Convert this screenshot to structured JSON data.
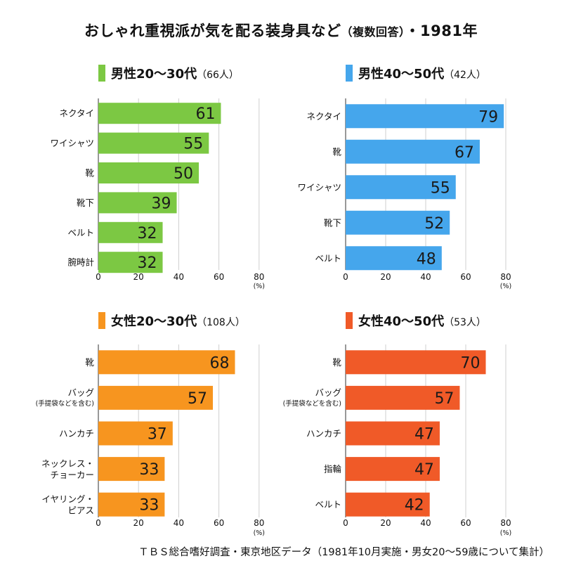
{
  "title": "おしゃれ重視派が気を配る装身具など",
  "title_paren": "（複数回答）",
  "title_year": "・1981年",
  "footer": "ＴＢＳ総合嗜好調査・東京地区データ（1981年10月実施・男女20〜59歳について集計）",
  "chart_data": [
    {
      "type": "bar",
      "orientation": "horizontal",
      "title": "男性20〜30代",
      "title_note": "（66人）",
      "color": "#7cc843",
      "categories": [
        [
          "ネクタイ"
        ],
        [
          "ワイシャツ"
        ],
        [
          "靴"
        ],
        [
          "靴下"
        ],
        [
          "ベルト"
        ],
        [
          "腕時計"
        ]
      ],
      "values": [
        61,
        55,
        50,
        39,
        32,
        32
      ],
      "xlim": [
        0,
        80
      ],
      "ticks": [
        0,
        20,
        40,
        60,
        80
      ],
      "unit": "(%)",
      "grid": true
    },
    {
      "type": "bar",
      "orientation": "horizontal",
      "title": "男性40〜50代",
      "title_note": "（42人）",
      "color": "#45a6ec",
      "categories": [
        [
          "ネクタイ"
        ],
        [
          "靴"
        ],
        [
          "ワイシャツ"
        ],
        [
          "靴下"
        ],
        [
          "ベルト"
        ]
      ],
      "values": [
        79,
        67,
        55,
        52,
        48
      ],
      "xlim": [
        0,
        80
      ],
      "ticks": [
        0,
        20,
        40,
        60,
        80
      ],
      "unit": "(%)",
      "grid": true
    },
    {
      "type": "bar",
      "orientation": "horizontal",
      "title": "女性20〜30代",
      "title_note": "（108人）",
      "color": "#f7951f",
      "categories": [
        [
          "靴"
        ],
        [
          "バッグ",
          "(手提袋などを含む)"
        ],
        [
          "ハンカチ"
        ],
        [
          "ネックレス・",
          "チョーカー"
        ],
        [
          "イヤリング・",
          "ピアス"
        ]
      ],
      "values": [
        68,
        57,
        37,
        33,
        33
      ],
      "xlim": [
        0,
        80
      ],
      "ticks": [
        0,
        20,
        40,
        60,
        80
      ],
      "unit": "(%)",
      "grid": true
    },
    {
      "type": "bar",
      "orientation": "horizontal",
      "title": "女性40〜50代",
      "title_note": "（53人）",
      "color": "#f05a28",
      "categories": [
        [
          "靴"
        ],
        [
          "バッグ",
          "(手提袋などを含む)"
        ],
        [
          "ハンカチ"
        ],
        [
          "指輪"
        ],
        [
          "ベルト"
        ]
      ],
      "values": [
        70,
        57,
        47,
        47,
        42
      ],
      "xlim": [
        0,
        80
      ],
      "ticks": [
        0,
        20,
        40,
        60,
        80
      ],
      "unit": "(%)",
      "grid": true
    }
  ]
}
